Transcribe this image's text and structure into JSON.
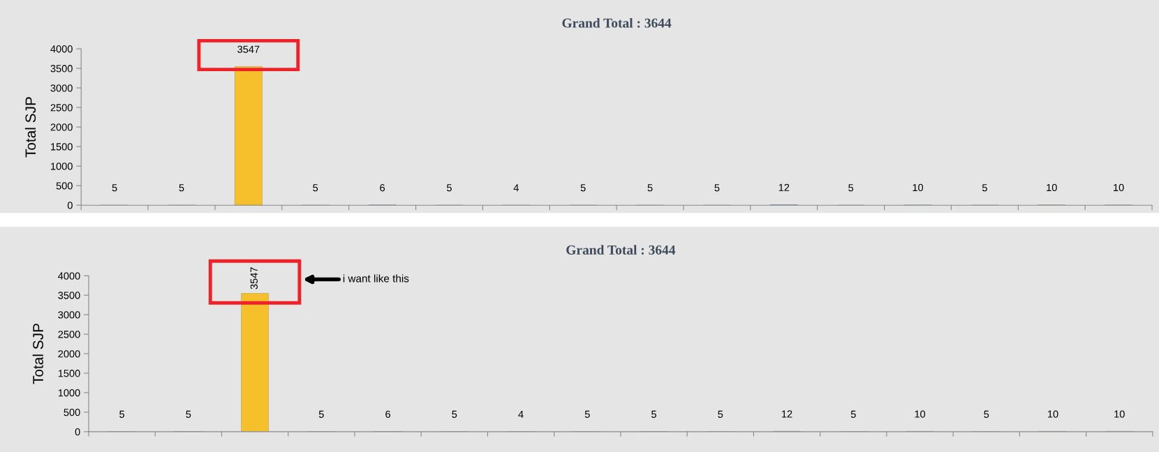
{
  "chart_data": [
    {
      "type": "bar",
      "title": "Grand Total : 3644",
      "ylabel": "Total SJP",
      "categories": [
        null,
        null,
        null,
        null,
        null,
        null,
        null,
        null,
        null,
        null,
        null,
        null,
        null,
        null,
        null,
        null
      ],
      "values": [
        5,
        5,
        3547,
        5,
        6,
        5,
        4,
        5,
        5,
        5,
        12,
        5,
        10,
        5,
        10,
        10
      ],
      "colors": [
        "#a9c4d9",
        "#d9534f",
        "#f5c02c",
        "#9bbb59",
        "#8064a2",
        "#e6a0b0",
        "#c5c552",
        "#a0a0a0",
        "#4f9fcf",
        "#d6dc8a",
        "#4f81bd",
        "#d8a8c8",
        "#8fd19e",
        "#e0b8c8",
        "#9ccc65",
        "#c8c8e0"
      ],
      "ylim": [
        0,
        4000
      ],
      "yticks": [
        0,
        500,
        1000,
        1500,
        2000,
        2500,
        3000,
        3500,
        4000
      ],
      "data_labels": true,
      "grid": false,
      "legend": false
    },
    {
      "type": "bar",
      "title": "Grand Total : 3644",
      "ylabel": "Total SJP",
      "categories": [
        null,
        null,
        null,
        null,
        null,
        null,
        null,
        null,
        null,
        null,
        null,
        null,
        null,
        null,
        null,
        null
      ],
      "values": [
        5,
        5,
        3547,
        5,
        6,
        5,
        4,
        5,
        5,
        5,
        12,
        5,
        10,
        5,
        10,
        10
      ],
      "colors": [
        "#a9c4d9",
        "#d9534f",
        "#f5c02c",
        "#9bbb59",
        "#8064a2",
        "#e6a0b0",
        "#c5c552",
        "#a0a0a0",
        "#4f9fcf",
        "#d6dc8a",
        "#4f81bd",
        "#d8a8c8",
        "#8fd19e",
        "#e0b8c8",
        "#9ccc65",
        "#c8c8e0"
      ],
      "ylim": [
        0,
        4000
      ],
      "yticks": [
        0,
        500,
        1000,
        1500,
        2000,
        2500,
        3000,
        3500,
        4000
      ],
      "data_labels": true,
      "grid": false,
      "legend": false,
      "annotations": [
        "i want like this"
      ]
    }
  ]
}
